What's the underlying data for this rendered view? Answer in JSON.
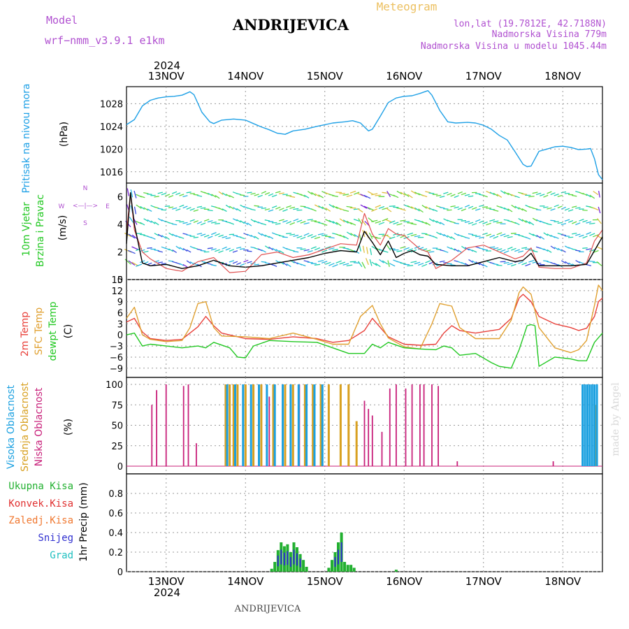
{
  "header": {
    "model_label": "Model",
    "model_name": "wrf−nmm_v3.9.1  e1km",
    "station": "ANDRIJEVICA",
    "product": "Meteogram",
    "coords": "lon,lat (19.7812E, 42.7188N)",
    "elevation": "Nadmorska Visina 779m",
    "model_elevation": "Nadmorska Visina u modelu 1045.44m",
    "footer_station": "ANDRIJEVICA",
    "credit": "made by Angel"
  },
  "colors": {
    "pressure": "#1ea0e6",
    "temp2m": "#e8403a",
    "sfc": "#e0a030",
    "dewpt": "#22c822",
    "high_cloud": "#1aa0e0",
    "mid_cloud": "#d8a020",
    "low_cloud": "#c8207a",
    "precip_total": "#22b030",
    "precip_conv": "#e03030",
    "precip_frz": "#f07830",
    "snow": "#3030d0",
    "grad": "#20c0c0",
    "wind_speed": "#000000",
    "gust": "#e05050"
  },
  "x_axis": {
    "year": "2024",
    "days": [
      "13NOV",
      "14NOV",
      "15NOV",
      "16NOV",
      "17NOV",
      "18NOV"
    ]
  },
  "compass": {
    "n": "N",
    "s": "S",
    "w": "W",
    "e": "E",
    "arrows": "<—|—>"
  },
  "chart_data": [
    {
      "type": "line",
      "panel": "pressure",
      "ylabel": "Pritisak na nivou mora",
      "unit": "(hPa)",
      "yticks": [
        "1028",
        "1024",
        "1020",
        "1016"
      ],
      "ylim": [
        1014,
        1031
      ],
      "x_days": [
        12.5,
        18.5
      ],
      "series": [
        {
          "x": [
            12.5,
            12.6,
            12.7,
            12.8,
            12.9,
            13.0,
            13.1,
            13.2,
            13.3,
            13.35,
            13.45,
            13.55,
            13.6,
            13.7,
            13.85,
            14.0,
            14.1,
            14.2,
            14.3,
            14.4,
            14.5,
            14.6,
            14.75,
            14.9,
            15.0,
            15.1,
            15.25,
            15.35,
            15.45,
            15.55,
            15.6,
            15.7,
            15.8,
            15.9,
            16.0,
            16.1,
            16.2,
            16.3,
            16.35,
            16.45,
            16.55,
            16.65,
            16.8,
            16.9,
            17.0,
            17.1,
            17.2,
            17.3,
            17.4,
            17.5,
            17.55,
            17.6,
            17.7,
            17.8,
            17.9,
            18.0,
            18.1,
            18.2,
            18.3,
            18.35,
            18.4,
            18.45,
            18.5
          ],
          "values": [
            1024.3,
            1025.2,
            1027.6,
            1028.6,
            1029.0,
            1029.2,
            1029.3,
            1029.5,
            1030.1,
            1029.6,
            1026.5,
            1024.8,
            1024.5,
            1025.1,
            1025.3,
            1025.1,
            1024.5,
            1023.9,
            1023.4,
            1022.8,
            1022.6,
            1023.2,
            1023.5,
            1024.0,
            1024.3,
            1024.6,
            1024.8,
            1025.0,
            1024.6,
            1023.2,
            1023.5,
            1025.8,
            1028.2,
            1029.0,
            1029.3,
            1029.4,
            1029.8,
            1030.3,
            1029.5,
            1026.8,
            1024.8,
            1024.6,
            1024.7,
            1024.6,
            1024.2,
            1023.5,
            1022.4,
            1021.6,
            1019.5,
            1017.3,
            1016.9,
            1017.0,
            1019.6,
            1020.0,
            1020.4,
            1020.5,
            1020.3,
            1019.9,
            1020.0,
            1020.1,
            1018.3,
            1015.5,
            1014.6
          ]
        }
      ]
    },
    {
      "type": "line",
      "panel": "wind",
      "ylabel_lines": [
        "10m Vjetar",
        "Brzina i Pravac"
      ],
      "unit": "(m/s)",
      "yticks": [
        "6",
        "4",
        "2",
        "0"
      ],
      "ylim": [
        0,
        7
      ],
      "x_days": [
        12.5,
        18.5
      ],
      "series": [
        {
          "name": "speed",
          "x": [
            12.5,
            12.55,
            12.6,
            12.7,
            12.8,
            13.0,
            13.2,
            13.4,
            13.6,
            13.8,
            14.0,
            14.2,
            14.4,
            14.6,
            14.8,
            15.0,
            15.2,
            15.4,
            15.5,
            15.6,
            15.7,
            15.8,
            15.9,
            16.0,
            16.1,
            16.2,
            16.3,
            16.4,
            16.6,
            16.8,
            17.0,
            17.2,
            17.4,
            17.5,
            17.6,
            17.7,
            17.9,
            18.1,
            18.3,
            18.4,
            18.5
          ],
          "values": [
            2.6,
            6.3,
            4.0,
            1.2,
            1.0,
            1.1,
            0.8,
            1.0,
            1.4,
            1.0,
            0.9,
            1.0,
            1.2,
            1.4,
            1.6,
            1.9,
            2.1,
            2.0,
            3.5,
            2.7,
            1.8,
            2.8,
            1.6,
            1.9,
            2.1,
            1.8,
            1.7,
            1.1,
            1.0,
            1.0,
            1.3,
            1.6,
            1.3,
            1.4,
            1.9,
            1.0,
            1.0,
            1.0,
            1.1,
            2.1,
            3.1
          ]
        },
        {
          "name": "gust",
          "x": [
            12.5,
            12.55,
            12.6,
            12.7,
            12.8,
            13.0,
            13.2,
            13.4,
            13.6,
            13.8,
            14.0,
            14.2,
            14.4,
            14.6,
            14.8,
            15.0,
            15.2,
            15.4,
            15.5,
            15.6,
            15.7,
            15.8,
            15.9,
            16.0,
            16.1,
            16.2,
            16.3,
            16.4,
            16.6,
            16.8,
            17.0,
            17.2,
            17.4,
            17.5,
            17.6,
            17.7,
            17.9,
            18.1,
            18.3,
            18.4,
            18.5
          ],
          "values": [
            3.4,
            6.3,
            3.6,
            2.0,
            1.5,
            0.8,
            0.6,
            1.3,
            1.6,
            0.5,
            0.6,
            1.8,
            2.0,
            1.6,
            1.8,
            2.2,
            2.6,
            2.5,
            4.8,
            3.3,
            2.5,
            3.7,
            3.3,
            3.2,
            2.7,
            2.2,
            2.0,
            0.8,
            1.4,
            2.3,
            2.5,
            2.0,
            1.5,
            1.7,
            2.3,
            0.9,
            0.8,
            0.8,
            1.2,
            2.8,
            3.6
          ]
        }
      ]
    },
    {
      "type": "line",
      "panel": "temperature",
      "ylabel_lines": [
        "2m Temp",
        "SFC Temp",
        "dewpt Temp"
      ],
      "unit": "(C)",
      "yticks": [
        "15",
        "12",
        "9",
        "6",
        "3",
        "0",
        "−3",
        "−6",
        "−9"
      ],
      "ylim": [
        -11.5,
        15
      ],
      "x_days": [
        12.5,
        18.5
      ],
      "series": [
        {
          "name": "2m Temp",
          "x": [
            12.5,
            12.6,
            12.7,
            12.8,
            13.0,
            13.2,
            13.4,
            13.5,
            13.6,
            13.7,
            14.0,
            14.3,
            14.6,
            14.9,
            15.1,
            15.3,
            15.5,
            15.6,
            15.7,
            15.8,
            16.0,
            16.2,
            16.4,
            16.5,
            16.6,
            16.7,
            16.9,
            17.2,
            17.35,
            17.45,
            17.5,
            17.6,
            17.7,
            17.9,
            18.1,
            18.2,
            18.3,
            18.4,
            18.45,
            18.5
          ],
          "values": [
            3.5,
            4.5,
            0.8,
            -1.0,
            -1.5,
            -1.2,
            2.2,
            5.0,
            2.5,
            0.5,
            -1.0,
            -1.2,
            -0.5,
            -1.0,
            -2.0,
            -1.5,
            1.2,
            4.5,
            2.0,
            -0.5,
            -2.5,
            -2.8,
            -2.5,
            0.5,
            2.5,
            1.2,
            0.5,
            1.5,
            4.5,
            10.0,
            11.0,
            9.0,
            5.0,
            3.0,
            2.0,
            1.2,
            1.8,
            5.0,
            9.0,
            10.0
          ]
        },
        {
          "name": "SFC Temp",
          "x": [
            12.5,
            12.6,
            12.7,
            12.8,
            13.0,
            13.2,
            13.3,
            13.4,
            13.5,
            13.6,
            13.7,
            14.0,
            14.3,
            14.6,
            14.9,
            15.1,
            15.3,
            15.45,
            15.6,
            15.7,
            15.8,
            16.0,
            16.2,
            16.35,
            16.45,
            16.6,
            16.7,
            16.9,
            17.2,
            17.35,
            17.45,
            17.5,
            17.6,
            17.7,
            17.9,
            18.1,
            18.2,
            18.3,
            18.4,
            18.45,
            18.5
          ],
          "values": [
            4.5,
            7.5,
            0.0,
            -1.2,
            -1.8,
            -1.5,
            2.0,
            8.5,
            9.0,
            2.0,
            -0.3,
            -0.5,
            -1.0,
            0.5,
            -1.2,
            -2.5,
            -2.5,
            5.0,
            8.0,
            3.0,
            -0.8,
            -3.2,
            -3.8,
            3.0,
            8.5,
            7.8,
            2.0,
            -1.0,
            -1.0,
            4.0,
            11.5,
            13.0,
            11.0,
            2.0,
            -3.5,
            -4.8,
            -4.0,
            -1.5,
            8.0,
            13.5,
            12.0
          ]
        },
        {
          "name": "dewpt Temp",
          "x": [
            12.5,
            12.6,
            12.7,
            12.8,
            13.0,
            13.2,
            13.4,
            13.5,
            13.6,
            13.8,
            13.9,
            14.0,
            14.1,
            14.3,
            14.6,
            14.9,
            15.1,
            15.3,
            15.5,
            15.6,
            15.7,
            15.8,
            16.0,
            16.2,
            16.4,
            16.5,
            16.6,
            16.7,
            16.9,
            17.1,
            17.2,
            17.35,
            17.45,
            17.55,
            17.6,
            17.65,
            17.7,
            17.9,
            18.1,
            18.2,
            18.3,
            18.4,
            18.5
          ],
          "values": [
            0.0,
            0.5,
            -3.0,
            -2.5,
            -3.0,
            -3.5,
            -3.0,
            -3.5,
            -2.0,
            -3.5,
            -6.0,
            -6.2,
            -3.0,
            -1.5,
            -1.8,
            -2.0,
            -3.5,
            -5.0,
            -5.0,
            -2.5,
            -3.5,
            -2.0,
            -3.5,
            -3.8,
            -4.0,
            -3.0,
            -3.5,
            -5.5,
            -5.0,
            -7.5,
            -8.5,
            -9.0,
            -4.0,
            2.5,
            2.8,
            2.5,
            -8.5,
            -6.0,
            -6.5,
            -7.0,
            -7.0,
            -2.0,
            0.5
          ]
        }
      ]
    },
    {
      "type": "bar",
      "panel": "cloud",
      "ylabel_lines": [
        "Visoka Oblacnost",
        "Srednja Oblacnost",
        "Niska Oblacnost"
      ],
      "unit": "(%)",
      "yticks": [
        "100",
        "75",
        "50",
        "25",
        "0"
      ],
      "ylim": [
        0,
        100
      ],
      "x_days": [
        12.5,
        18.5
      ],
      "series": [
        {
          "name": "Niska Oblacnost",
          "x": [
            12.82,
            12.88,
            13.0,
            13.22,
            13.28,
            13.38,
            14.3,
            14.68,
            15.5,
            15.55,
            15.6,
            15.72,
            15.82,
            15.9,
            16.02,
            16.1,
            16.2,
            16.25,
            16.35,
            16.43,
            16.67,
            17.88
          ],
          "values": [
            75,
            93,
            100,
            98,
            100,
            28,
            85,
            100,
            80,
            70,
            62,
            42,
            95,
            100,
            95,
            100,
            100,
            100,
            100,
            98,
            6,
            6
          ]
        },
        {
          "name": "Srednja Oblacnost",
          "x": [
            13.75,
            13.8,
            13.85,
            13.9,
            14.0,
            14.1,
            14.2,
            14.35,
            14.5,
            14.6,
            14.75,
            14.85,
            14.95,
            15.05,
            15.2,
            15.3,
            15.4,
            18.42
          ],
          "values": [
            100,
            100,
            100,
            100,
            100,
            100,
            100,
            100,
            100,
            100,
            100,
            100,
            100,
            100,
            100,
            100,
            55,
            75
          ]
        },
        {
          "name": "Visoka Oblacnost",
          "x": [
            13.77,
            13.87,
            13.97,
            14.07,
            14.17,
            14.27,
            14.37,
            14.47,
            14.57,
            14.67,
            14.77,
            14.87,
            14.97,
            18.25,
            18.28,
            18.31,
            18.34,
            18.37,
            18.4,
            18.43
          ],
          "values": [
            100,
            100,
            100,
            100,
            100,
            100,
            100,
            100,
            100,
            100,
            100,
            100,
            100,
            100,
            100,
            100,
            100,
            100,
            100,
            100
          ]
        }
      ]
    },
    {
      "type": "bar",
      "panel": "precip",
      "legend": [
        "Ukupna Kisa",
        "Konvek.Kisa",
        "Zaledj.Kisa",
        "Snijeg",
        "Grad"
      ],
      "ylabel": "1hr Precip (mm)",
      "yticks": [
        "0.8",
        "0.6",
        "0.4",
        "0.2",
        "0"
      ],
      "ylim": [
        0,
        1.0
      ],
      "x_days": [
        12.5,
        18.5
      ],
      "series": [
        {
          "name": "Ukupna Kisa",
          "x": [
            14.33,
            14.37,
            14.41,
            14.45,
            14.49,
            14.53,
            14.57,
            14.61,
            14.65,
            14.69,
            14.73,
            14.77,
            15.05,
            15.09,
            15.13,
            15.17,
            15.21,
            15.25,
            15.29,
            15.33,
            15.37,
            15.9
          ],
          "values": [
            0.03,
            0.1,
            0.22,
            0.3,
            0.26,
            0.28,
            0.2,
            0.3,
            0.25,
            0.18,
            0.12,
            0.05,
            0.04,
            0.12,
            0.2,
            0.3,
            0.4,
            0.1,
            0.07,
            0.07,
            0.04,
            0.02
          ]
        }
      ]
    }
  ]
}
